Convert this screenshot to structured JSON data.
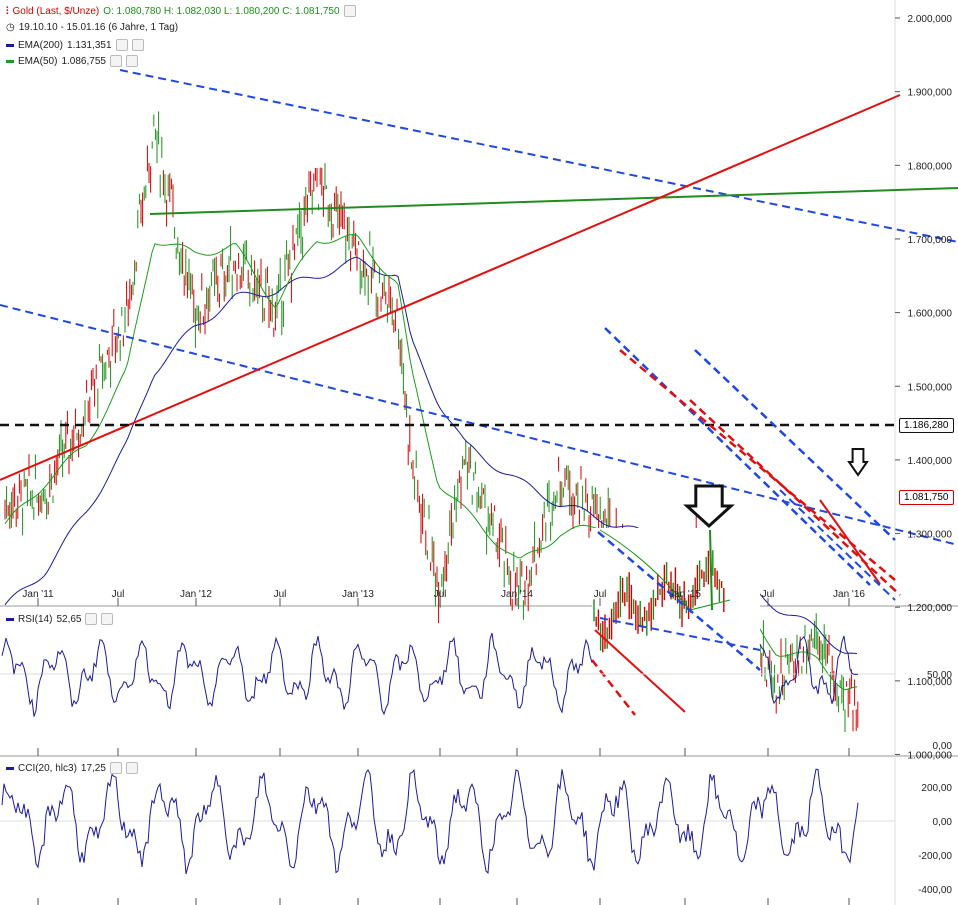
{
  "header": {
    "title": "Gold (Last, $/Unze)",
    "ohlc": "O: 1.080,780  H: 1.082,030  L: 1.080,200  C: 1.081,750",
    "period": "19.10.10 - 15.01.16 (6 Jahre, 1 Tag)",
    "ema200_label": "EMA(200)",
    "ema200_value": "1.131,351",
    "ema50_label": "EMA(50)",
    "ema50_value": "1.086,755"
  },
  "price_axis": {
    "ticks": [
      "2.000,000",
      "1.900,000",
      "1.800,000",
      "1.700,000",
      "1.600,000",
      "1.500,000",
      "1.400,000",
      "1.300,000",
      "1.200,000",
      "1.100,000",
      "1.000,000"
    ],
    "tags": [
      "1.186,280",
      "1.081,750"
    ]
  },
  "time_axis": {
    "ticks": [
      "Jan '11",
      "Jul",
      "Jan '12",
      "Jul",
      "Jan '13",
      "Jul",
      "Jan '14",
      "Jul",
      "Jan '15",
      "Jul",
      "Jan '16"
    ]
  },
  "rsi": {
    "label": "RSI(14)",
    "value": "52,65",
    "ticks": [
      "50,00",
      "0,00"
    ]
  },
  "cci": {
    "label": "CCI(20, hlc3)",
    "value": "17,25",
    "ticks": [
      "200,00",
      "0,00",
      "-200,00",
      "-400,00"
    ]
  },
  "colors": {
    "ema200": "#1b1b9c",
    "ema50": "#1b9c1b",
    "candle_up": "#1a8f1a",
    "candle_down": "#d00000",
    "trend_blue": "#1f48e0",
    "trend_red": "#e01010",
    "trend_green": "#228b22"
  },
  "chart_data": {
    "type": "line",
    "title": "Gold (Last, $/Unze)",
    "x": [
      "2010-10",
      "2011-01",
      "2011-04",
      "2011-07",
      "2011-09",
      "2011-12",
      "2012-03",
      "2012-06",
      "2012-09",
      "2012-12",
      "2013-03",
      "2013-04",
      "2013-06",
      "2013-08",
      "2013-12",
      "2014-03",
      "2014-06",
      "2014-09",
      "2014-11",
      "2015-01",
      "2015-03",
      "2015-07",
      "2015-10",
      "2015-12",
      "2016-01"
    ],
    "series": [
      {
        "name": "Gold",
        "values": [
          1340,
          1360,
          1470,
          1600,
          1850,
          1600,
          1670,
          1600,
          1780,
          1680,
          1600,
          1400,
          1230,
          1400,
          1210,
          1380,
          1320,
          1230,
          1180,
          1280,
          1190,
          1100,
          1170,
          1060,
          1081.75
        ]
      },
      {
        "name": "EMA(200)",
        "values": [
          1200,
          1250,
          1330,
          1420,
          1520,
          1580,
          1620,
          1630,
          1650,
          1670,
          1650,
          1560,
          1480,
          1420,
          1370,
          1340,
          1320,
          1300,
          1280,
          1260,
          1250,
          1200,
          1170,
          1140,
          1131.351
        ]
      },
      {
        "name": "EMA(50)",
        "values": [
          1310,
          1370,
          1420,
          1520,
          1700,
          1680,
          1690,
          1610,
          1700,
          1700,
          1640,
          1520,
          1370,
          1330,
          1260,
          1300,
          1310,
          1260,
          1210,
          1230,
          1230,
          1140,
          1130,
          1090,
          1086.755
        ]
      }
    ],
    "ylim": [
      950,
      2050
    ]
  }
}
